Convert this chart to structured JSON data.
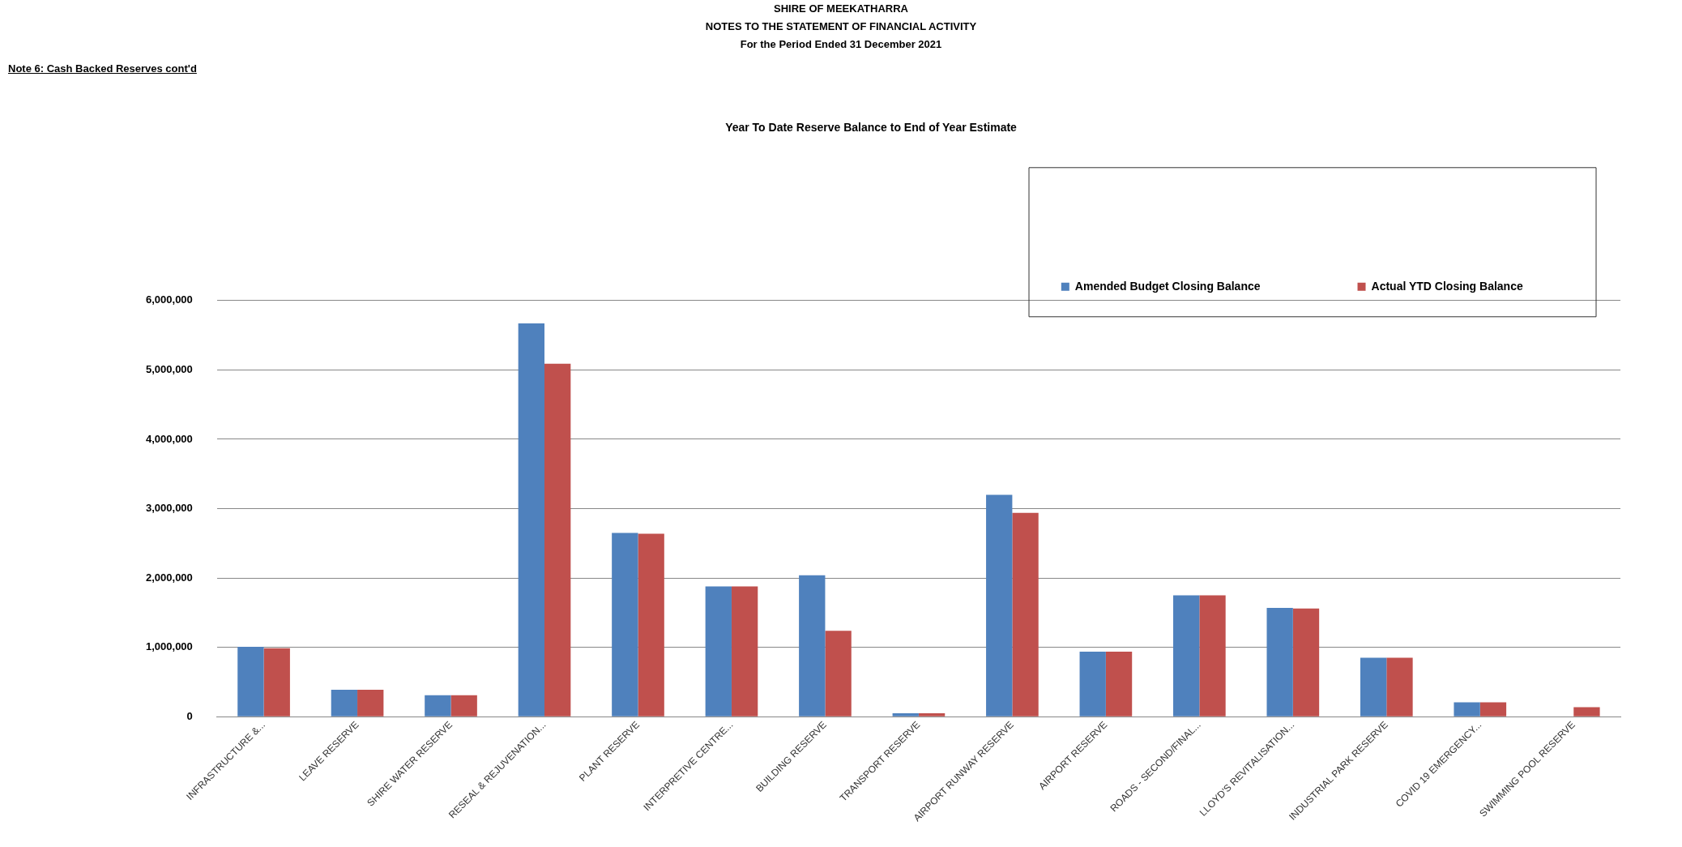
{
  "chart_data": {
    "type": "bar",
    "title": "Year To Date Reserve Balance to End of Year Estimate",
    "annotations": [
      "SHIRE OF MEEKATHARRA",
      "NOTES TO THE STATEMENT OF FINANCIAL ACTIVITY",
      "For the Period Ended 31 December 2021",
      "Note 6: Cash Backed Reserves cont'd"
    ],
    "categories": [
      "INFRASTRUCTURE &...",
      "LEAVE RESERVE",
      "SHIRE WATER RESERVE",
      "RESEAL & REJUVENATION...",
      "PLANT RESERVE",
      "INTERPRETIVE CENTRE...",
      "BUILDING RESERVE",
      "TRANSPORT RESERVE",
      "AIRPORT RUNWAY RESERVE",
      "AIRPORT RESERVE",
      "ROADS - SECOND/FINAL...",
      "LLOYD'S REVITALISATION...",
      "INDUSTRIAL PARK RESERVE",
      "COVID 19 EMERGENCY...",
      "SWIMMING POOL RESERVE"
    ],
    "series": [
      {
        "name": "Amended Budget Closing Balance",
        "color": "#4f81bd",
        "values": [
          1010000,
          390000,
          310000,
          5670000,
          2650000,
          1880000,
          2040000,
          50000,
          3200000,
          940000,
          1750000,
          1570000,
          850000,
          210000,
          0
        ]
      },
      {
        "name": "Actual YTD Closing Balance",
        "color": "#c0504d",
        "values": [
          990000,
          390000,
          310000,
          5090000,
          2640000,
          1880000,
          1240000,
          50000,
          2940000,
          940000,
          1750000,
          1560000,
          850000,
          210000,
          140000
        ]
      }
    ],
    "ylim": [
      0,
      6000000
    ],
    "yticks": [
      {
        "value": 0,
        "label": "0"
      },
      {
        "value": 1000000,
        "label": "1,000,000"
      },
      {
        "value": 2000000,
        "label": "2,000,000"
      },
      {
        "value": 3000000,
        "label": "3,000,000"
      },
      {
        "value": 4000000,
        "label": "4,000,000"
      },
      {
        "value": 5000000,
        "label": "5,000,000"
      },
      {
        "value": 6000000,
        "label": "6,000,000"
      }
    ],
    "grid": "y",
    "legend": "top right"
  }
}
